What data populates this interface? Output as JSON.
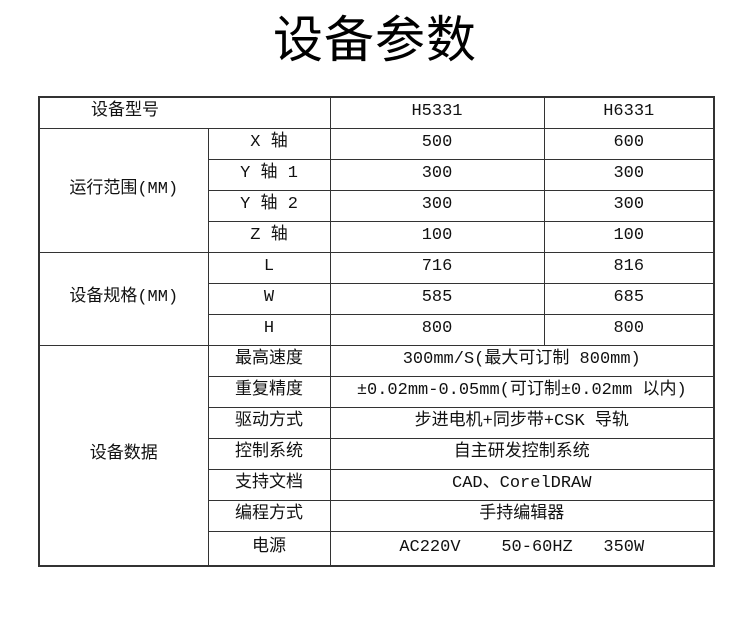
{
  "title": "设备参数",
  "colors": {
    "background": "#ffffff",
    "border": "#333333",
    "text": "#111111"
  },
  "table": {
    "header": {
      "label": "设备型号",
      "model_a": "H5331",
      "model_b": "H6331"
    },
    "groups": [
      {
        "name": "运行范围(MM)",
        "rows": [
          {
            "label": "X 轴",
            "a": "500",
            "b": "600"
          },
          {
            "label": "Y 轴 1",
            "a": "300",
            "b": "300"
          },
          {
            "label": "Y 轴 2",
            "a": "300",
            "b": "300"
          },
          {
            "label": "Z 轴",
            "a": "100",
            "b": "100"
          }
        ]
      },
      {
        "name": "设备规格(MM)",
        "rows": [
          {
            "label": "L",
            "a": "716",
            "b": "816"
          },
          {
            "label": "W",
            "a": "585",
            "b": "685"
          },
          {
            "label": "H",
            "a": "800",
            "b": "800"
          }
        ]
      },
      {
        "name": "设备数据",
        "rows": [
          {
            "label": "最高速度",
            "value": "300mm/S(最大可订制 800mm)"
          },
          {
            "label": "重复精度",
            "value": "±0.02mm-0.05mm(可订制±0.02mm 以内)"
          },
          {
            "label": "驱动方式",
            "value": "步进电机+同步带+CSK 导轨"
          },
          {
            "label": "控制系统",
            "value": "自主研发控制系统"
          },
          {
            "label": "支持文档",
            "value": "CAD、CorelDRAW"
          },
          {
            "label": "编程方式",
            "value": "手持编辑器"
          },
          {
            "label": "电源",
            "value": "AC220V    50-60HZ   350W"
          }
        ]
      }
    ]
  }
}
